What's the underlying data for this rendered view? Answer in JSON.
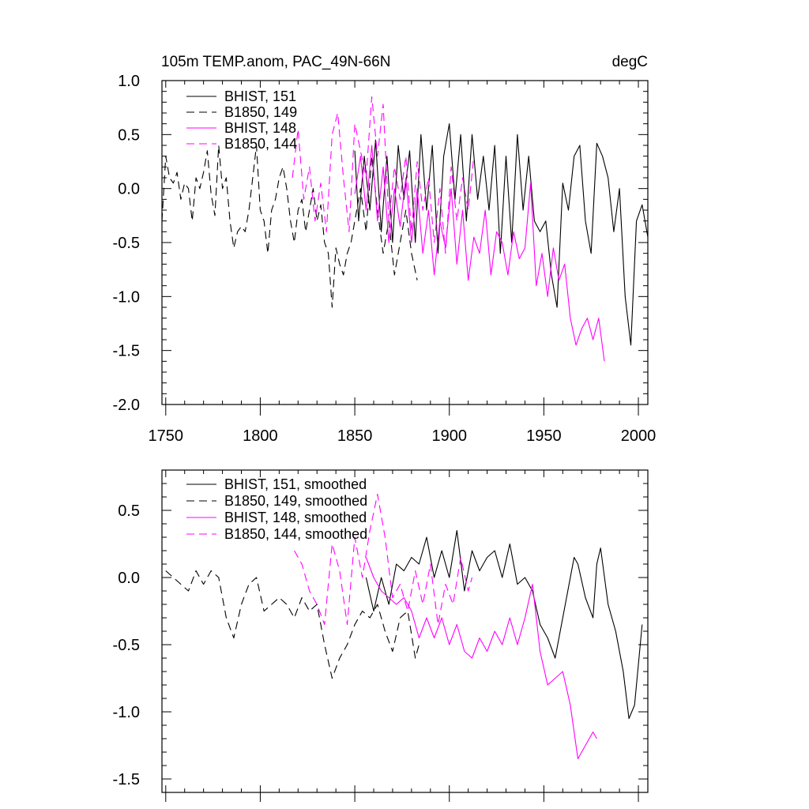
{
  "chart_data": [
    {
      "type": "line",
      "title": "105m TEMP.anom, PAC_49N-66N",
      "units": "degC",
      "xlim": [
        1748,
        2005
      ],
      "ylim": [
        -2.0,
        1.0
      ],
      "xticks": [
        1750,
        1800,
        1850,
        1900,
        1950,
        2000
      ],
      "xtick_labels": [
        "1750",
        "1800",
        "1850",
        "1900",
        "1950",
        "2000"
      ],
      "yticks": [
        -2.0,
        -1.5,
        -1.0,
        -0.5,
        0.0,
        0.5,
        1.0
      ],
      "ytick_labels": [
        "-2.0",
        "-1.5",
        "-1.0",
        "-0.5",
        "0.0",
        "0.5",
        "1.0"
      ],
      "series": [
        {
          "name": "BHIST, 151",
          "color": "#000000",
          "dash": "solid",
          "x": [
            1850,
            1852,
            1855,
            1858,
            1861,
            1864,
            1867,
            1870,
            1873,
            1876,
            1879,
            1882,
            1885,
            1888,
            1891,
            1894,
            1897,
            1900,
            1903,
            1906,
            1909,
            1912,
            1915,
            1918,
            1921,
            1924,
            1927,
            1930,
            1933,
            1936,
            1939,
            1942,
            1945,
            1948,
            1951,
            1954,
            1957,
            1960,
            1963,
            1966,
            1969,
            1972,
            1975,
            1978,
            1981,
            1984,
            1987,
            1990,
            1993,
            1996,
            1999,
            2002,
            2005
          ],
          "values": [
            0.35,
            -0.3,
            0.3,
            -0.2,
            0.45,
            -0.4,
            0.3,
            -0.5,
            0.4,
            -0.1,
            0.35,
            -0.5,
            0.5,
            -0.2,
            0.4,
            -0.6,
            0.3,
            0.6,
            -0.1,
            0.5,
            -0.3,
            0.5,
            -0.1,
            0.3,
            -0.2,
            0.4,
            -0.6,
            0.3,
            -0.5,
            0.5,
            -0.2,
            0.3,
            -0.3,
            -0.4,
            -0.3,
            -0.8,
            -1.1,
            0.05,
            -0.2,
            0.3,
            0.4,
            -0.3,
            -0.6,
            0.42,
            0.3,
            0.1,
            -0.4,
            0.0,
            -1.0,
            -1.45,
            -0.3,
            -0.15,
            -0.45
          ]
        },
        {
          "name": "B1850, 149",
          "color": "#000000",
          "dash": "dashed",
          "x": [
            1748,
            1750,
            1752,
            1754,
            1756,
            1758,
            1760,
            1762,
            1764,
            1766,
            1768,
            1770,
            1772,
            1774,
            1776,
            1778,
            1780,
            1782,
            1784,
            1786,
            1788,
            1790,
            1792,
            1794,
            1796,
            1798,
            1800,
            1802,
            1804,
            1806,
            1808,
            1810,
            1812,
            1814,
            1816,
            1818,
            1820,
            1822,
            1824,
            1826,
            1828,
            1830,
            1832,
            1834,
            1836,
            1838,
            1840,
            1842,
            1844,
            1846,
            1848,
            1850,
            1853,
            1856,
            1859,
            1862,
            1865,
            1868,
            1871,
            1874,
            1877,
            1880,
            1883
          ],
          "values": [
            -0.3,
            0.3,
            0.1,
            0.05,
            0.15,
            -0.1,
            0.05,
            0.0,
            -0.3,
            0.1,
            0.0,
            0.15,
            0.35,
            -0.05,
            -0.25,
            0.4,
            0.0,
            0.1,
            -0.3,
            -0.55,
            -0.4,
            -0.35,
            -0.4,
            -0.2,
            0.1,
            0.4,
            -0.2,
            -0.3,
            -0.6,
            -0.2,
            -0.1,
            0.1,
            0.2,
            0.0,
            -0.3,
            -0.5,
            -0.2,
            -0.1,
            -0.4,
            -0.2,
            0.0,
            -0.3,
            -0.15,
            -0.5,
            -0.6,
            -1.1,
            -0.55,
            -0.7,
            -0.8,
            -0.6,
            -0.5,
            -0.3,
            0.0,
            -0.4,
            0.3,
            -0.2,
            -0.6,
            -0.3,
            -0.8,
            -0.5,
            -0.2,
            -0.6,
            -0.85
          ]
        },
        {
          "name": "BHIST, 148",
          "color": "#ff00ff",
          "dash": "solid",
          "x": [
            1850,
            1853,
            1856,
            1859,
            1862,
            1865,
            1868,
            1871,
            1874,
            1877,
            1880,
            1883,
            1886,
            1889,
            1892,
            1895,
            1898,
            1901,
            1904,
            1907,
            1910,
            1913,
            1916,
            1919,
            1922,
            1925,
            1928,
            1931,
            1934,
            1937,
            1940,
            1943,
            1946,
            1949,
            1952,
            1955,
            1958,
            1961,
            1964,
            1967,
            1970,
            1973,
            1976,
            1979,
            1982
          ],
          "values": [
            -0.05,
            0.3,
            -0.2,
            0.4,
            -0.3,
            0.2,
            -0.5,
            0.0,
            -0.35,
            0.1,
            -0.5,
            0.0,
            -0.6,
            -0.2,
            -0.8,
            -0.3,
            -0.55,
            0.0,
            -0.7,
            -0.2,
            -0.85,
            -0.45,
            -0.6,
            -0.2,
            -0.8,
            -0.4,
            -0.5,
            -0.8,
            -0.4,
            -0.65,
            -0.55,
            0.05,
            -0.9,
            -0.6,
            -1.0,
            -0.55,
            -0.85,
            -0.7,
            -1.2,
            -1.45,
            -1.3,
            -1.2,
            -1.4,
            -1.2,
            -1.6
          ]
        },
        {
          "name": "B1850, 144",
          "color": "#ff00ff",
          "dash": "dashed",
          "x": [
            1817,
            1820,
            1823,
            1826,
            1829,
            1832,
            1835,
            1838,
            1841,
            1844,
            1847,
            1850,
            1853,
            1856,
            1859,
            1862,
            1865,
            1868,
            1871,
            1874,
            1877,
            1880,
            1883,
            1886,
            1889,
            1892,
            1895,
            1898,
            1901,
            1904,
            1907,
            1910,
            1913
          ],
          "values": [
            0.1,
            0.55,
            -0.1,
            0.2,
            -0.3,
            0.05,
            -0.4,
            0.5,
            0.7,
            0.1,
            -0.4,
            0.6,
            0.35,
            0.1,
            0.85,
            0.3,
            0.78,
            -0.3,
            0.2,
            -0.1,
            0.3,
            -0.4,
            0.25,
            -0.2,
            0.1,
            -0.5,
            0.0,
            -0.6,
            0.2,
            -0.3,
            0.1,
            -0.2,
            0.3
          ]
        }
      ]
    },
    {
      "type": "line",
      "title": "",
      "xlim": [
        1748,
        2005
      ],
      "ylim": [
        -1.6,
        0.8
      ],
      "yticks": [
        -1.5,
        -1.0,
        -0.5,
        0.0,
        0.5
      ],
      "ytick_labels": [
        "-1.5",
        "-1.0",
        "-0.5",
        "0.0",
        "0.5"
      ],
      "series": [
        {
          "name": "BHIST, 151, smoothed",
          "color": "#000000",
          "dash": "solid",
          "x": [
            1856,
            1860,
            1864,
            1868,
            1872,
            1876,
            1880,
            1884,
            1888,
            1892,
            1896,
            1900,
            1904,
            1908,
            1912,
            1916,
            1920,
            1924,
            1928,
            1932,
            1936,
            1940,
            1944,
            1948,
            1952,
            1956,
            1960,
            1964,
            1966,
            1968,
            1972,
            1976,
            1978,
            1980,
            1984,
            1988,
            1992,
            1995,
            1998,
            2002
          ],
          "values": [
            0.0,
            -0.25,
            0.0,
            -0.2,
            0.1,
            0.05,
            0.15,
            0.1,
            0.3,
            0.0,
            0.2,
            0.0,
            0.35,
            -0.1,
            0.2,
            0.05,
            0.15,
            0.2,
            0.0,
            0.25,
            -0.05,
            0.0,
            -0.1,
            -0.35,
            -0.45,
            -0.6,
            -0.3,
            0.0,
            0.15,
            0.1,
            -0.15,
            -0.3,
            0.1,
            0.22,
            -0.2,
            -0.4,
            -0.7,
            -1.05,
            -0.95,
            -0.35
          ]
        },
        {
          "name": "B1850, 149, smoothed",
          "color": "#000000",
          "dash": "dashed",
          "x": [
            1750,
            1754,
            1758,
            1762,
            1766,
            1770,
            1774,
            1778,
            1782,
            1786,
            1790,
            1794,
            1798,
            1802,
            1806,
            1810,
            1814,
            1818,
            1822,
            1826,
            1830,
            1834,
            1838,
            1842,
            1846,
            1850,
            1854,
            1858,
            1862,
            1866,
            1870,
            1874,
            1878,
            1882,
            1884
          ],
          "values": [
            0.05,
            0.0,
            -0.05,
            -0.1,
            0.05,
            -0.05,
            0.05,
            0.0,
            -0.3,
            -0.45,
            -0.2,
            -0.05,
            0.0,
            -0.25,
            -0.2,
            -0.15,
            -0.2,
            -0.3,
            -0.15,
            -0.25,
            -0.2,
            -0.5,
            -0.75,
            -0.6,
            -0.5,
            -0.35,
            -0.25,
            -0.3,
            -0.2,
            -0.4,
            -0.55,
            -0.3,
            -0.25,
            -0.6,
            -0.5
          ]
        },
        {
          "name": "BHIST, 148, smoothed",
          "color": "#ff00ff",
          "dash": "solid",
          "x": [
            1856,
            1860,
            1864,
            1868,
            1872,
            1876,
            1880,
            1884,
            1888,
            1892,
            1896,
            1900,
            1904,
            1908,
            1912,
            1916,
            1920,
            1924,
            1928,
            1932,
            1936,
            1940,
            1944,
            1948,
            1952,
            1956,
            1960,
            1964,
            1968,
            1972,
            1976,
            1978
          ],
          "values": [
            0.15,
            0.0,
            -0.1,
            -0.15,
            -0.2,
            -0.15,
            -0.25,
            -0.45,
            -0.3,
            -0.45,
            -0.3,
            -0.5,
            -0.35,
            -0.55,
            -0.6,
            -0.45,
            -0.55,
            -0.4,
            -0.5,
            -0.3,
            -0.5,
            -0.3,
            -0.05,
            -0.55,
            -0.8,
            -0.75,
            -0.7,
            -0.95,
            -1.35,
            -1.25,
            -1.15,
            -1.2
          ]
        },
        {
          "name": "B1850, 144, smoothed",
          "color": "#ff00ff",
          "dash": "dashed",
          "x": [
            1818,
            1822,
            1826,
            1830,
            1834,
            1838,
            1842,
            1846,
            1850,
            1854,
            1858,
            1862,
            1866,
            1870,
            1874,
            1878,
            1882,
            1886,
            1890,
            1894,
            1898,
            1902,
            1906,
            1910,
            1912
          ],
          "values": [
            0.2,
            0.1,
            -0.1,
            -0.2,
            -0.35,
            0.25,
            0.05,
            -0.35,
            0.3,
            0.0,
            0.35,
            0.62,
            0.3,
            -0.15,
            -0.05,
            -0.25,
            0.05,
            -0.2,
            0.1,
            -0.35,
            -0.05,
            -0.2,
            0.15,
            -0.1,
            0.0
          ]
        }
      ]
    }
  ]
}
